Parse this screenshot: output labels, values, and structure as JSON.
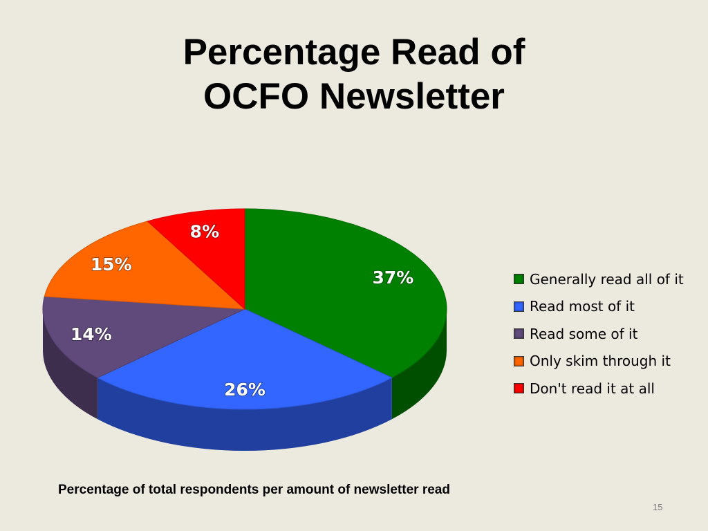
{
  "title": [
    "Percentage Read of",
    "OCFO Newsletter"
  ],
  "caption": "Percentage of total respondents per amount of newsletter read",
  "page_number": "15",
  "chart_data": {
    "type": "pie",
    "title": "Percentage Read of OCFO Newsletter",
    "categories": [
      "Generally read all of it",
      "Read most of it",
      "Read some of it",
      "Only skim through it",
      "Don't read it at all"
    ],
    "values": [
      37,
      26,
      14,
      15,
      8
    ],
    "labels": [
      "37%",
      "26%",
      "14%",
      "15%",
      "8%"
    ],
    "unit": "%",
    "style": "3d",
    "legend": "right",
    "colors": [
      "#008000",
      "#3366FF",
      "#604A7B",
      "#FF6600",
      "#FF0000"
    ]
  }
}
